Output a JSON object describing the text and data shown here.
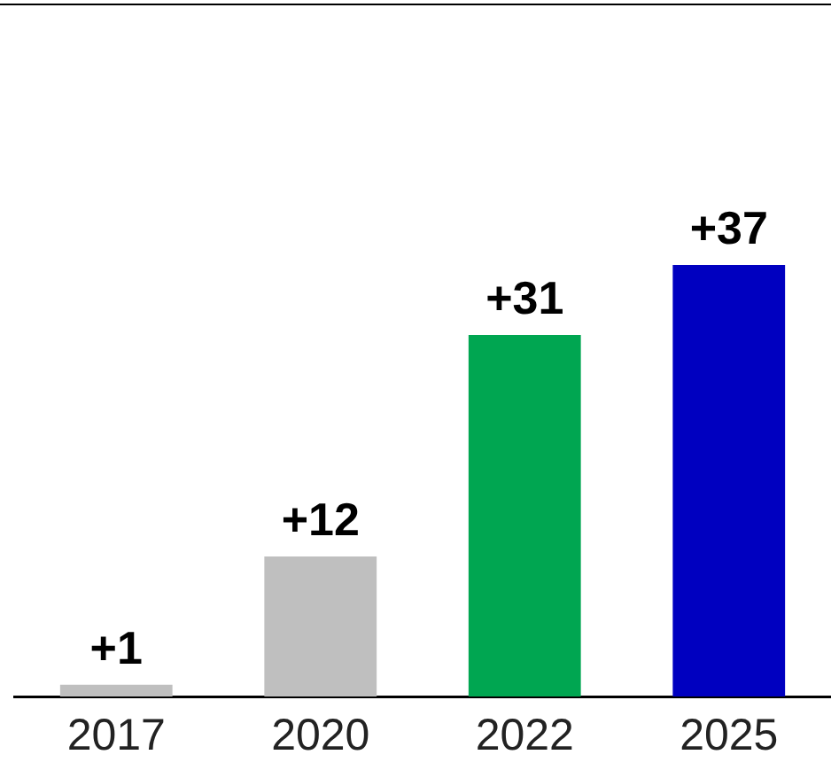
{
  "chart_data": {
    "type": "bar",
    "categories": [
      "2017",
      "2020",
      "2022",
      "2025"
    ],
    "values": [
      1,
      12,
      31,
      37
    ],
    "colors": [
      "#bfbfbf",
      "#bfbfbf",
      "#00a651",
      "#0000c0"
    ],
    "value_labels": [
      "+1",
      "+12",
      "+31",
      "+37"
    ],
    "legend": false
  }
}
